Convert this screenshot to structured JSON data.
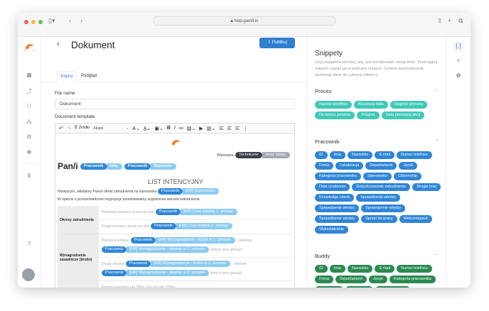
{
  "browser": {
    "url": "help.gamfi.io"
  },
  "colors": {
    "accent": "#2f7fd1",
    "proces": "#3fc9b7",
    "pracownik": "#2f86d6",
    "buddy": "#2a8a4f",
    "logo": "#f07a2a"
  },
  "sidebar": {
    "icons": [
      "dashboard-icon",
      "workflow-icon",
      "users-icon",
      "hierarchy-icon",
      "settings-icon",
      "puzzle-icon",
      "dollar-icon",
      "help-icon",
      "avatar-icon"
    ]
  },
  "header": {
    "title": "Dokument",
    "publish_label": "Publikuj",
    "tabs": [
      "Edytor",
      "Podgląd"
    ]
  },
  "form": {
    "file_name_label": "File name",
    "file_name_value": "Dokument",
    "template_label": "Document template"
  },
  "toolbar": {
    "source_label": "Źródło",
    "paragraph_label": "Akapit"
  },
  "doc": {
    "city": "Warszawa,",
    "city_pill": [
      "Techniczne",
      "Teraz (data)"
    ],
    "salutation": "Pan/i",
    "sal_pills": [
      [
        "Pracownik",
        "Imię"
      ],
      [
        "Pracownik",
        "Nazwisko"
      ]
    ],
    "heading": "LIST INTENCYJNY",
    "p1": "Niniejszym, składamy Panu/i ofertę zatrudnienia na stanowisku",
    "p1_pill": [
      "Pracownik",
      "[HR] Stanowisko"
    ],
    "p2": "W oparciu o przeprowadzone negocjacje przedstawiamy uzgodnione warunki zatrudnienia.",
    "rows": [
      {
        "label": "Okresy zatrudnienia",
        "subs": [
          {
            "lines": [
              {
                "pre": "Pierwsza umowa o pracę na czas",
                "pill": [
                  "Pracownik",
                  "[HR] Czas trwania 1. umowy"
                ],
                "post": ""
              }
            ]
          },
          {
            "lines": [
              {
                "pre": "Druga umowa o pracę na czas",
                "pill": [
                  "Pracownik",
                  "[HR] Czas trwania 2. umowy"
                ],
                "post": ""
              }
            ]
          }
        ]
      },
      {
        "label": "Wynagrodzenie zasadnicze (brutto)",
        "subs": [
          {
            "lines": [
              {
                "pre": "Pierwsza umowa:",
                "pill": [
                  "Pracownik",
                  "[HR] Wynagrodzenie - liczba w 1. umowie"
                ],
                "post": "- (słownie:"
              },
              {
                "pre": "",
                "pill": [
                  "Pracownik",
                  "[HR] Wynagrodzenie - słownie w 1. umowie"
                ],
                "post": "złotych zero groszy)"
              }
            ]
          },
          {
            "lines": [
              {
                "pre": "Druga umowa:",
                "pill": [
                  "Pracownik",
                  "[HR] Wynagrodzenie - liczba w 2. umowie"
                ],
                "post": "- (słownie:"
              },
              {
                "pre": "",
                "pill": [
                  "Pracownik",
                  "[HR] Wynagrodzenie - słownie w 2. umowie"
                ],
                "post": "złotych zero groszy)"
              }
            ]
          }
        ]
      },
      {
        "label": "Dodatkowe elementy wynagrodzenia",
        "subs": [
          {
            "lines": [
              {
                "pre": "Premia kwartalna (do 25%) i roczna (do 100%)",
                "pill": null,
                "post": ""
              }
            ]
          },
          {
            "lines": [
              {
                "pre": "",
                "pill": [
                  "Pracownik",
                  "[HR] Dodatkowe elementy wynagrodzenia"
                ],
                "post": ""
              }
            ]
          }
        ]
      }
    ]
  },
  "snippets": {
    "title": "Snippety",
    "description": "Użyj snippetów poniżej, aby spersonalizować swoją treść. Przeciągnij snippet i upuść go w wybrane miejsce. System automatycznie dostosuje dane do sytuacji odbiorcy.",
    "sections": [
      {
        "title": "Proces",
        "color": "#3fc9b7",
        "chips": [
          "Nazwa workflow",
          "Kluczowa data",
          "Długość procesu",
          "Do końca procesu",
          "Progres",
          "Data pierwszej akcji"
        ]
      },
      {
        "title": "Pracownik",
        "color": "#2f86d6",
        "chips": [
          "ID",
          "Imię",
          "Nazwisko",
          "E-mail",
          "Numer telefonu",
          "Firma",
          "Lokalizacja",
          "Departament",
          "Język",
          "Kategoria pracownika",
          "Stanowisko",
          "Citizenship",
          "Data urodzenia",
          "Dotychczasowe zatrudnienie",
          "Drugie imię",
          "Knowledge check",
          "Sprawdzenie wiedzy",
          "Sprawdzenie wiedzy",
          "Sprawdzenie wiedzy",
          "Sprawdzenie wiedzy",
          "Sprzęt do pracy",
          "Welcomepack",
          "Wykształcenie"
        ]
      },
      {
        "title": "Buddy",
        "color": "#2a8a4f",
        "chips": [
          "ID",
          "Imię",
          "Nazwisko",
          "E-mail",
          "Numer telefonu",
          "Firma",
          "Departament",
          "Język",
          "Kategoria pracownika",
          "Stanowisko",
          "Citizenship",
          "Data urodzenia",
          "Dotychczasowe zatrudnienie"
        ]
      }
    ]
  },
  "rail": {
    "icons": [
      "code-braces-icon",
      "branch-icon",
      "settings-icon"
    ]
  }
}
